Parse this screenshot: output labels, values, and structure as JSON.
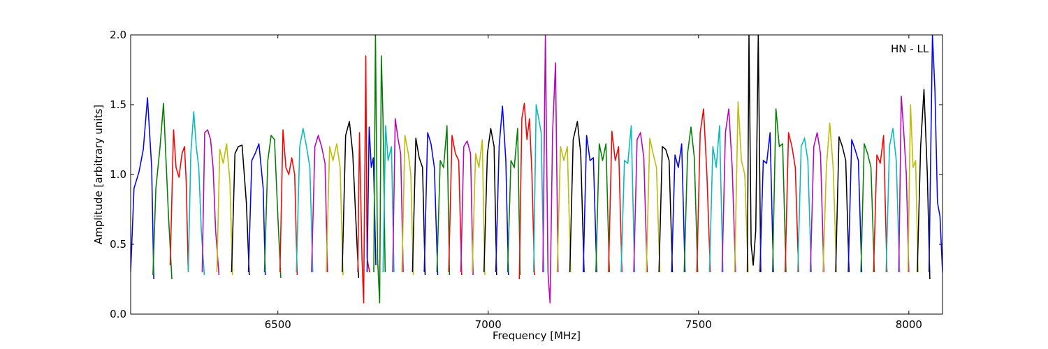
{
  "chart_data": {
    "type": "line",
    "title": "",
    "annotation": "HN - LL",
    "xlabel": "Frequency [MHz]",
    "ylabel": "Amplitude [arbitrary units]",
    "xlim": [
      6150,
      8080
    ],
    "ylim": [
      0.0,
      2.0
    ],
    "xticks": [
      6500,
      7000,
      7500,
      8000
    ],
    "xtick_labels": [
      "6500",
      "7000",
      "7500",
      "8000"
    ],
    "yticks": [
      0.0,
      0.5,
      1.0,
      1.5,
      2.0
    ],
    "ytick_labels": [
      "0.0",
      "0.5",
      "1.0",
      "1.5",
      "2.0"
    ],
    "grid": false,
    "legend": "none",
    "color_cycle": [
      "#0000ff",
      "#008000",
      "#ff0000",
      "#00bfbf",
      "#bf00bf",
      "#bfbf00",
      "#000000"
    ],
    "background_color": "#c0c0c0",
    "series": [
      {
        "x": [
          6150,
          6158,
          6170,
          6180,
          6190,
          6200,
          6205
        ],
        "y": [
          0.3,
          0.9,
          1.02,
          1.18,
          1.55,
          1.05,
          0.25
        ],
        "color": "#0000ff"
      },
      {
        "x": [
          6203,
          6210,
          6220,
          6228,
          6240,
          6248
        ],
        "y": [
          0.28,
          0.9,
          1.2,
          1.51,
          0.7,
          0.25
        ],
        "color": "#008000"
      },
      {
        "x": [
          6244,
          6252,
          6258,
          6265,
          6272,
          6278,
          6282,
          6287
        ],
        "y": [
          0.35,
          1.32,
          1.05,
          0.98,
          1.15,
          1.2,
          0.95,
          0.3
        ],
        "color": "#ff0000"
      },
      {
        "x": [
          6287,
          6293,
          6300,
          6306,
          6312,
          6318,
          6325
        ],
        "y": [
          0.3,
          1.15,
          1.45,
          1.2,
          1.05,
          0.6,
          0.28
        ],
        "color": "#00bfbf"
      },
      {
        "x": [
          6320,
          6326,
          6333,
          6340,
          6346,
          6352,
          6360
        ],
        "y": [
          0.3,
          1.3,
          1.32,
          1.25,
          1.05,
          0.6,
          0.28
        ],
        "color": "#bf00bf"
      },
      {
        "x": [
          6355,
          6362,
          6370,
          6378,
          6386,
          6392
        ],
        "y": [
          0.3,
          1.18,
          1.08,
          1.22,
          0.95,
          0.28
        ],
        "color": "#bfbf00"
      },
      {
        "x": [
          6390,
          6398,
          6406,
          6415,
          6425,
          6432
        ],
        "y": [
          0.3,
          1.15,
          1.2,
          1.21,
          0.8,
          0.28
        ],
        "color": "#000000"
      },
      {
        "x": [
          6430,
          6438,
          6446,
          6455,
          6465,
          6470
        ],
        "y": [
          0.3,
          1.1,
          1.15,
          1.22,
          0.9,
          0.28
        ],
        "color": "#0000ff"
      },
      {
        "x": [
          6468,
          6476,
          6484,
          6492,
          6500,
          6507
        ],
        "y": [
          0.3,
          1.1,
          1.28,
          1.25,
          0.7,
          0.26
        ],
        "color": "#008000"
      },
      {
        "x": [
          6505,
          6512,
          6519,
          6526,
          6533,
          6540,
          6546
        ],
        "y": [
          0.3,
          1.32,
          1.05,
          1.0,
          1.12,
          1.0,
          0.28
        ],
        "color": "#ff0000"
      },
      {
        "x": [
          6544,
          6552,
          6560,
          6568,
          6576,
          6583
        ],
        "y": [
          0.3,
          1.2,
          1.33,
          1.2,
          1.05,
          0.3
        ],
        "color": "#00bfbf"
      },
      {
        "x": [
          6580,
          6588,
          6596,
          6604,
          6612,
          6618
        ],
        "y": [
          0.3,
          1.2,
          1.28,
          1.2,
          1.08,
          0.3
        ],
        "color": "#bf00bf"
      },
      {
        "x": [
          6615,
          6623,
          6631,
          6640,
          6648,
          6655
        ],
        "y": [
          0.3,
          1.2,
          1.1,
          1.22,
          1.05,
          0.28
        ],
        "color": "#bfbf00"
      },
      {
        "x": [
          6653,
          6661,
          6670,
          6678,
          6685,
          6692
        ],
        "y": [
          0.3,
          1.28,
          1.38,
          1.15,
          0.7,
          0.26
        ],
        "color": "#000000"
      },
      {
        "x": [
          6690,
          6694,
          6700,
          6704,
          6709,
          6712,
          6718
        ],
        "y": [
          0.3,
          1.3,
          0.4,
          0.08,
          1.85,
          0.4,
          0.3
        ],
        "color": "#ff0000"
      },
      {
        "x": [
          6712,
          6717,
          6722,
          6727,
          6733
        ],
        "y": [
          0.3,
          1.34,
          1.05,
          1.12,
          0.35
        ],
        "color": "#0000ff"
      },
      {
        "x": [
          6728,
          6732,
          6737,
          6742,
          6746,
          6750,
          6755
        ],
        "y": [
          0.3,
          2.0,
          0.4,
          0.08,
          1.85,
          1.4,
          0.3
        ],
        "color": "#008000"
      },
      {
        "x": [
          6750,
          6756,
          6762,
          6770,
          6776
        ],
        "y": [
          0.3,
          1.35,
          1.1,
          1.2,
          0.3
        ],
        "color": "#00bfbf"
      },
      {
        "x": [
          6773,
          6779,
          6786,
          6792,
          6798
        ],
        "y": [
          0.3,
          1.4,
          1.25,
          1.15,
          0.3
        ],
        "color": "#bf00bf"
      },
      {
        "x": [
          6795,
          6802,
          6810,
          6816,
          6822
        ],
        "y": [
          0.3,
          1.28,
          1.15,
          1.0,
          0.28
        ],
        "color": "#bfbf00"
      },
      {
        "x": [
          6820,
          6828,
          6836,
          6844,
          6850
        ],
        "y": [
          0.3,
          1.26,
          1.12,
          1.05,
          0.28
        ],
        "color": "#000000"
      },
      {
        "x": [
          6848,
          6856,
          6864,
          6872,
          6880
        ],
        "y": [
          0.3,
          1.3,
          1.22,
          1.05,
          0.28
        ],
        "color": "#0000ff"
      },
      {
        "x": [
          6878,
          6886,
          6894,
          6902,
          6908
        ],
        "y": [
          0.3,
          1.1,
          1.05,
          1.35,
          0.28
        ],
        "color": "#008000"
      },
      {
        "x": [
          6906,
          6914,
          6922,
          6930,
          6937
        ],
        "y": [
          0.3,
          1.28,
          1.15,
          1.1,
          0.28
        ],
        "color": "#ff0000"
      },
      {
        "x": [
          6935,
          6942,
          6950,
          6958,
          6964
        ],
        "y": [
          0.3,
          1.2,
          1.24,
          1.15,
          0.28
        ],
        "color": "#bf00bf"
      },
      {
        "x": [
          6962,
          6970,
          6978,
          6986,
          6992
        ],
        "y": [
          0.3,
          1.15,
          1.05,
          1.25,
          0.28
        ],
        "color": "#bfbf00"
      },
      {
        "x": [
          6990,
          6998,
          7006,
          7014,
          7020
        ],
        "y": [
          0.3,
          1.15,
          1.33,
          1.2,
          0.28
        ],
        "color": "#000000"
      },
      {
        "x": [
          7018,
          7026,
          7034,
          7042,
          7048
        ],
        "y": [
          0.3,
          1.2,
          1.49,
          1.1,
          0.28
        ],
        "color": "#0000ff"
      },
      {
        "x": [
          7046,
          7054,
          7062,
          7070,
          7076
        ],
        "y": [
          0.3,
          1.1,
          1.05,
          1.33,
          0.28
        ],
        "color": "#008000"
      },
      {
        "x": [
          7074,
          7080,
          7086,
          7092,
          7098,
          7104,
          7110
        ],
        "y": [
          0.25,
          1.4,
          1.51,
          1.25,
          1.4,
          1.0,
          0.28
        ],
        "color": "#ff0000"
      },
      {
        "x": [
          7108,
          7114,
          7120,
          7126,
          7132
        ],
        "y": [
          0.3,
          1.5,
          1.4,
          1.3,
          0.3
        ],
        "color": "#00bfbf"
      },
      {
        "x": [
          7130,
          7136,
          7142,
          7147,
          7153,
          7160,
          7166
        ],
        "y": [
          0.3,
          2.0,
          0.3,
          0.08,
          1.3,
          1.8,
          0.3
        ],
        "color": "#bf00bf"
      },
      {
        "x": [
          7164,
          7172,
          7180,
          7188,
          7196
        ],
        "y": [
          0.3,
          1.2,
          1.1,
          1.2,
          0.3
        ],
        "color": "#bfbf00"
      },
      {
        "x": [
          7194,
          7202,
          7212,
          7220,
          7228
        ],
        "y": [
          0.3,
          1.25,
          1.38,
          1.15,
          0.3
        ],
        "color": "#000000"
      },
      {
        "x": [
          7226,
          7234,
          7242,
          7250,
          7258
        ],
        "y": [
          0.3,
          1.28,
          1.1,
          1.12,
          0.3
        ],
        "color": "#0000ff"
      },
      {
        "x": [
          7256,
          7264,
          7272,
          7280,
          7288
        ],
        "y": [
          0.3,
          1.22,
          1.1,
          1.22,
          0.3
        ],
        "color": "#008000"
      },
      {
        "x": [
          7286,
          7294,
          7302,
          7310,
          7318
        ],
        "y": [
          0.3,
          1.31,
          1.1,
          1.2,
          0.3
        ],
        "color": "#ff0000"
      },
      {
        "x": [
          7316,
          7324,
          7332,
          7340,
          7348
        ],
        "y": [
          0.3,
          1.1,
          1.08,
          1.35,
          0.3
        ],
        "color": "#00bfbf"
      },
      {
        "x": [
          7346,
          7354,
          7362,
          7370,
          7378
        ],
        "y": [
          0.3,
          1.25,
          1.3,
          1.12,
          0.3
        ],
        "color": "#bf00bf"
      },
      {
        "x": [
          7376,
          7384,
          7392,
          7400,
          7408
        ],
        "y": [
          0.3,
          1.26,
          1.15,
          1.05,
          0.3
        ],
        "color": "#bfbf00"
      },
      {
        "x": [
          7406,
          7414,
          7422,
          7430,
          7438
        ],
        "y": [
          0.3,
          1.2,
          1.18,
          1.1,
          0.3
        ],
        "color": "#000000"
      },
      {
        "x": [
          7436,
          7444,
          7452,
          7460,
          7468
        ],
        "y": [
          0.3,
          1.14,
          1.05,
          1.22,
          0.3
        ],
        "color": "#0000ff"
      },
      {
        "x": [
          7466,
          7474,
          7482,
          7490,
          7498
        ],
        "y": [
          0.3,
          1.15,
          1.34,
          1.12,
          0.3
        ],
        "color": "#008000"
      },
      {
        "x": [
          7496,
          7504,
          7512,
          7520,
          7528
        ],
        "y": [
          0.3,
          1.3,
          1.47,
          1.0,
          0.3
        ],
        "color": "#ff0000"
      },
      {
        "x": [
          7526,
          7534,
          7542,
          7550,
          7558
        ],
        "y": [
          0.3,
          1.2,
          1.05,
          1.35,
          0.3
        ],
        "color": "#00bfbf"
      },
      {
        "x": [
          7556,
          7564,
          7572,
          7580,
          7588
        ],
        "y": [
          0.3,
          1.3,
          1.47,
          1.05,
          0.3
        ],
        "color": "#bf00bf"
      },
      {
        "x": [
          7586,
          7594,
          7602,
          7610,
          7618
        ],
        "y": [
          0.3,
          1.52,
          1.1,
          1.0,
          0.3
        ],
        "color": "#bfbf00"
      },
      {
        "x": [
          7616,
          7620,
          7625,
          7630,
          7636,
          7642,
          7648
        ],
        "y": [
          0.3,
          2.0,
          0.5,
          0.35,
          0.6,
          2.0,
          0.3
        ],
        "color": "#000000"
      },
      {
        "x": [
          7646,
          7654,
          7662,
          7670,
          7678
        ],
        "y": [
          0.3,
          1.1,
          1.08,
          1.3,
          0.3
        ],
        "color": "#0000ff"
      },
      {
        "x": [
          7676,
          7684,
          7692,
          7700,
          7708
        ],
        "y": [
          0.3,
          1.47,
          1.2,
          1.22,
          0.3
        ],
        "color": "#008000"
      },
      {
        "x": [
          7706,
          7714,
          7722,
          7730,
          7738
        ],
        "y": [
          0.3,
          1.3,
          1.2,
          1.05,
          0.3
        ],
        "color": "#ff0000"
      },
      {
        "x": [
          7736,
          7744,
          7752,
          7760,
          7768
        ],
        "y": [
          0.3,
          1.2,
          1.26,
          1.1,
          0.3
        ],
        "color": "#00bfbf"
      },
      {
        "x": [
          7766,
          7774,
          7782,
          7790,
          7798
        ],
        "y": [
          0.3,
          1.2,
          1.3,
          1.15,
          0.3
        ],
        "color": "#bf00bf"
      },
      {
        "x": [
          7796,
          7804,
          7812,
          7820,
          7828
        ],
        "y": [
          0.3,
          1.05,
          1.37,
          1.05,
          0.3
        ],
        "color": "#bfbf00"
      },
      {
        "x": [
          7826,
          7834,
          7842,
          7850,
          7858
        ],
        "y": [
          0.3,
          1.27,
          1.2,
          1.1,
          0.3
        ],
        "color": "#000000"
      },
      {
        "x": [
          7856,
          7864,
          7872,
          7880,
          7888
        ],
        "y": [
          0.3,
          1.25,
          1.18,
          1.1,
          0.3
        ],
        "color": "#0000ff"
      },
      {
        "x": [
          7886,
          7894,
          7902,
          7910,
          7918
        ],
        "y": [
          0.3,
          1.22,
          1.15,
          1.05,
          0.3
        ],
        "color": "#008000"
      },
      {
        "x": [
          7916,
          7924,
          7932,
          7940,
          7948
        ],
        "y": [
          0.3,
          1.14,
          1.08,
          1.28,
          0.3
        ],
        "color": "#ff0000"
      },
      {
        "x": [
          7946,
          7954,
          7962,
          7970,
          7978
        ],
        "y": [
          0.3,
          1.2,
          1.33,
          1.1,
          0.3
        ],
        "color": "#00bfbf"
      },
      {
        "x": [
          7976,
          7982,
          7988,
          7994,
          8000
        ],
        "y": [
          0.3,
          1.56,
          1.3,
          1.0,
          0.3
        ],
        "color": "#bf00bf"
      },
      {
        "x": [
          7998,
          8004,
          8010,
          8016,
          8022
        ],
        "y": [
          0.3,
          1.5,
          1.05,
          1.1,
          0.3
        ],
        "color": "#bfbf00"
      },
      {
        "x": [
          8020,
          8028,
          8036,
          8044,
          8050
        ],
        "y": [
          0.3,
          1.2,
          1.61,
          1.0,
          0.25
        ],
        "color": "#000000"
      },
      {
        "x": [
          8048,
          8056,
          8062,
          8068,
          8074,
          8080
        ],
        "y": [
          0.3,
          2.0,
          1.6,
          0.8,
          0.7,
          0.3
        ],
        "color": "#0000ff"
      }
    ]
  }
}
